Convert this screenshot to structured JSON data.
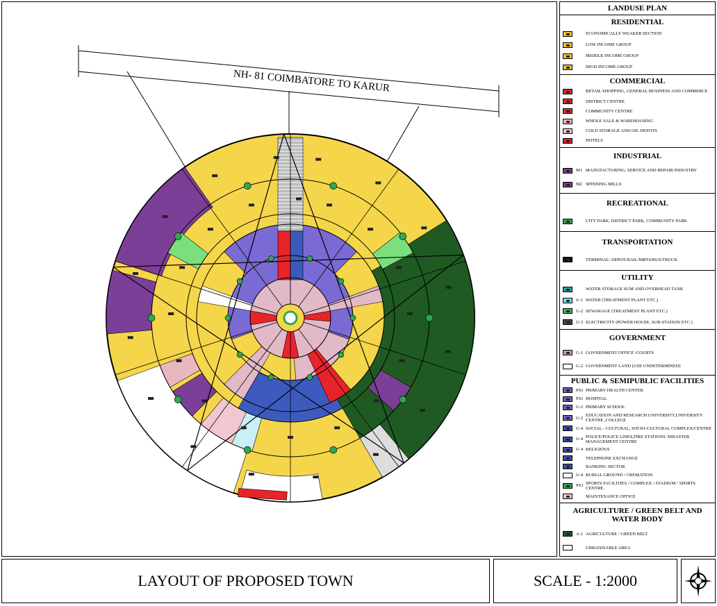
{
  "map": {
    "road_label": "NH- 81  COIMBATORE TO KARUR"
  },
  "legend": {
    "title": "LANDUSE PLAN",
    "sections": [
      {
        "title": "RESIDENTIAL",
        "items": [
          {
            "label": "ECONOMICALLY WEAKER SECTION",
            "color": "#f2c230"
          },
          {
            "label": "LOW INCOME GROUP",
            "color": "#f2c230"
          },
          {
            "label": "MIDDLE INCOME GROUP",
            "color": "#f2c230"
          },
          {
            "label": "HIGH INCOME GROUP",
            "color": "#f2c230"
          }
        ]
      },
      {
        "title": "COMMERCIAL",
        "items": [
          {
            "label": "RETAIL SHOPPING, GENERAL BUSINESS AND COMMERCE",
            "color": "#e8232a"
          },
          {
            "label": "DISTRICT CENTRE",
            "color": "#e8232a"
          },
          {
            "label": "COMMUNITY CENTRE",
            "color": "#e8232a"
          },
          {
            "label": "WHOLE SALE & WAREHOUSING",
            "color": "#e9b7c0"
          },
          {
            "label": "COLD STORAGE AND OIL DEPOTS",
            "color": "#f4c6cf"
          },
          {
            "label": "HOTELS",
            "color": "#e8232a"
          }
        ]
      },
      {
        "title": "INDUSTRIAL",
        "items": [
          {
            "code": "M1",
            "label": "MANUFACTURING, SERVICE AND REPAIR INDUSTRY",
            "color": "#7b3f98"
          },
          {
            "code": "M2",
            "label": "SPINNING MILLS",
            "color": "#7b3f98"
          }
        ]
      },
      {
        "title": "RECREATIONAL",
        "items": [
          {
            "label": "CITY PARK, DISTRICT PARK, COMMUNITY PARK",
            "color": "#2fa84f"
          }
        ]
      },
      {
        "title": "TRANSPORTATION",
        "items": [
          {
            "label": "TERMINAL/ DEPOT-RAIL/MRTS/BUS/TRUCK",
            "color": "#111111"
          }
        ]
      },
      {
        "title": "UTILITY",
        "items": [
          {
            "label": "WATER STORAGE SUM AND OVERHEAD TANK",
            "color": "#1aa6a0"
          },
          {
            "code": "U-1",
            "label": "WATER (TREATMENT PLANT ETC.)",
            "color": "#6fe0f0"
          },
          {
            "code": "U-2",
            "label": "SEWARAGE (TREATMENT PLANT ETC.)",
            "color": "#4caf50"
          },
          {
            "code": "U-3",
            "label": "ELECTRICITY (POWER HOUSE, SUB-STATION ETC.)",
            "color": "#444444"
          }
        ]
      },
      {
        "title": "GOVERNMENT",
        "items": [
          {
            "code": "G-1",
            "label": "GOVERNMENT OFFICE /COURTS",
            "color": "#c99aa8"
          },
          {
            "code": "G-2",
            "label": "GOVERNMENT LAND (USE UNDETERMINED)",
            "color": "#ffffff"
          }
        ]
      },
      {
        "title": "PUBLIC & SEMIPUBLIC FACILITIES",
        "items": [
          {
            "code": "PS1",
            "label": "PRIMARY HEALTH CENTER",
            "color": "#6f5fc8"
          },
          {
            "code": "PS1",
            "label": "HOSPITAL",
            "color": "#6f5fc8"
          },
          {
            "code": "U-2",
            "label": "PRIMARY SCHOOL",
            "color": "#6f5fc8"
          },
          {
            "code": "U-2",
            "label": "EDUCATION AND RESEARCH UNIVERSITY,UNIVERSITY CENTRE ,COLLEGE",
            "color": "#6f5fc8"
          },
          {
            "code": "U-4",
            "label": "SOCIAL - CULTURAL, SOCIO-CULTURAL COMPLEX/CENTRE",
            "color": "#3b4fb0"
          },
          {
            "code": "U-4",
            "label": "POLICE/POLICE LINES,FIRE STATIONS /DISASTER MANAGEMENT CENTRE",
            "color": "#3b4fb0"
          },
          {
            "code": "U-4",
            "label": "RELIGIOUS",
            "color": "#3b4fb0"
          },
          {
            "label": "TELEPHONE EXCHANGE",
            "color": "#3b4fb0"
          },
          {
            "label": "BANKING SECTOR",
            "color": "#3b4fb0"
          },
          {
            "code": "U-4",
            "label": "BURIAL GROUND / CREMATION",
            "color": "#ffffff"
          },
          {
            "code": "PS3",
            "label": "SPORTS FACILITIES / COMPLEX / STADIUM / SPORTS CENTRE.",
            "color": "#2fa84f"
          },
          {
            "label": "MAINTENANCE OFFICE",
            "color": "#f2c7cf"
          }
        ]
      },
      {
        "title": "AGRICULTURE / GREEN BELT AND WATER BODY",
        "items": [
          {
            "code": "A-1",
            "label": "AGRICULTURE / GREEN BELT",
            "color": "#1f5a23"
          },
          {
            "label": "URBANISABLE AREA",
            "color": "#ffffff"
          }
        ]
      }
    ]
  },
  "footer": {
    "title": "LAYOUT OF PROPOSED TOWN",
    "scale": "SCALE - 1:2000"
  }
}
